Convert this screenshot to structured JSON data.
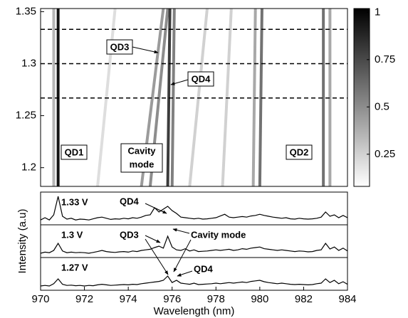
{
  "chart_data": [
    {
      "type": "heatmap",
      "xlim": [
        970,
        984
      ],
      "ylim": [
        1.182,
        1.353
      ],
      "yticks": [
        1.2,
        1.25,
        1.3,
        1.35
      ],
      "clim": [
        0.08,
        1.02
      ],
      "cticks": [
        0.25,
        0.5,
        0.75,
        1
      ],
      "colormap": [
        "#ffffff",
        "#000000"
      ],
      "hlines": [
        1.267,
        1.3,
        1.333
      ],
      "features": [
        {
          "x": [
            970.8,
            970.8
          ],
          "intensity": 0.95
        },
        {
          "x": [
            970.6,
            970.6
          ],
          "intensity": 0.35
        },
        {
          "x": [
            972.6,
            973.4
          ],
          "intensity": 0.2
        },
        {
          "x": [
            974.6,
            975.6
          ],
          "intensity": 0.45
        },
        {
          "x": [
            975.0,
            975.8
          ],
          "intensity": 0.5
        },
        {
          "x": [
            975.8,
            975.9
          ],
          "intensity": 0.8
        },
        {
          "x": [
            976.0,
            976.1
          ],
          "intensity": 0.55
        },
        {
          "x": [
            976.8,
            977.6
          ],
          "intensity": 0.25
        },
        {
          "x": [
            978.3,
            978.7
          ],
          "intensity": 0.25
        },
        {
          "x": [
            979.7,
            979.8
          ],
          "intensity": 0.4
        },
        {
          "x": [
            980.0,
            980.1
          ],
          "intensity": 0.6
        },
        {
          "x": [
            982.9,
            982.9
          ],
          "intensity": 0.6
        },
        {
          "x": [
            983.2,
            983.2
          ],
          "intensity": 0.4
        }
      ],
      "annotations": [
        "QD1",
        [
          "Cavity",
          "mode"
        ],
        "QD2",
        "QD3",
        "QD4"
      ]
    },
    {
      "type": "line",
      "xlabel": "Wavelength (nm)",
      "ylabel": "Intensity (a.u)",
      "xlim": [
        970,
        984
      ],
      "xticks": [
        970,
        972,
        974,
        976,
        978,
        980,
        982,
        984
      ],
      "ylim": [
        0,
        1
      ],
      "x": [
        970.0,
        970.2,
        970.4,
        970.6,
        970.8,
        971.0,
        971.2,
        971.4,
        971.6,
        971.8,
        972.0,
        972.2,
        972.4,
        972.6,
        972.8,
        973.0,
        973.2,
        973.4,
        973.6,
        973.8,
        974.0,
        974.2,
        974.4,
        974.6,
        974.8,
        975.0,
        975.2,
        975.4,
        975.6,
        975.8,
        976.0,
        976.2,
        976.4,
        976.6,
        976.8,
        977.0,
        977.2,
        977.4,
        977.6,
        977.8,
        978.0,
        978.2,
        978.4,
        978.6,
        978.8,
        979.0,
        979.2,
        979.4,
        979.6,
        979.8,
        980.0,
        980.2,
        980.4,
        980.6,
        980.8,
        981.0,
        981.2,
        981.4,
        981.6,
        981.8,
        982.0,
        982.2,
        982.4,
        982.6,
        982.8,
        983.0,
        983.2,
        983.4,
        983.6,
        983.8,
        984.0
      ],
      "series": [
        {
          "name": "1.33 V",
          "color": "#000000",
          "values": [
            0.12,
            0.2,
            0.12,
            0.3,
            0.95,
            0.25,
            0.15,
            0.18,
            0.12,
            0.15,
            0.14,
            0.12,
            0.16,
            0.2,
            0.22,
            0.18,
            0.14,
            0.16,
            0.15,
            0.18,
            0.16,
            0.2,
            0.18,
            0.22,
            0.28,
            0.3,
            0.55,
            0.4,
            0.5,
            0.6,
            0.45,
            0.35,
            0.22,
            0.2,
            0.18,
            0.16,
            0.18,
            0.15,
            0.16,
            0.18,
            0.2,
            0.26,
            0.32,
            0.22,
            0.2,
            0.22,
            0.24,
            0.22,
            0.26,
            0.28,
            0.32,
            0.28,
            0.25,
            0.22,
            0.2,
            0.18,
            0.2,
            0.16,
            0.15,
            0.18,
            0.16,
            0.15,
            0.16,
            0.18,
            0.22,
            0.4,
            0.25,
            0.3,
            0.2,
            0.28,
            0.2
          ]
        },
        {
          "name": "1.3 V",
          "color": "#000000",
          "values": [
            0.1,
            0.14,
            0.12,
            0.2,
            0.45,
            0.18,
            0.12,
            0.14,
            0.12,
            0.13,
            0.12,
            0.1,
            0.13,
            0.16,
            0.2,
            0.16,
            0.14,
            0.13,
            0.15,
            0.16,
            0.14,
            0.18,
            0.16,
            0.2,
            0.22,
            0.24,
            0.3,
            0.35,
            0.28,
            0.7,
            0.32,
            0.22,
            0.2,
            0.26,
            0.18,
            0.22,
            0.16,
            0.17,
            0.18,
            0.2,
            0.22,
            0.2,
            0.22,
            0.24,
            0.2,
            0.22,
            0.26,
            0.24,
            0.28,
            0.3,
            0.32,
            0.26,
            0.24,
            0.22,
            0.2,
            0.22,
            0.2,
            0.18,
            0.16,
            0.18,
            0.17,
            0.15,
            0.16,
            0.2,
            0.22,
            0.45,
            0.25,
            0.32,
            0.2,
            0.28,
            0.18
          ]
        },
        {
          "name": "1.27 V",
          "color": "#000000",
          "values": [
            0.1,
            0.12,
            0.1,
            0.18,
            0.35,
            0.16,
            0.12,
            0.13,
            0.11,
            0.12,
            0.1,
            0.12,
            0.11,
            0.14,
            0.16,
            0.14,
            0.12,
            0.13,
            0.14,
            0.15,
            0.14,
            0.16,
            0.15,
            0.18,
            0.2,
            0.22,
            0.24,
            0.26,
            0.3,
            0.45,
            0.22,
            0.3,
            0.2,
            0.18,
            0.16,
            0.2,
            0.15,
            0.16,
            0.17,
            0.18,
            0.2,
            0.18,
            0.2,
            0.22,
            0.2,
            0.22,
            0.24,
            0.22,
            0.26,
            0.28,
            0.3,
            0.25,
            0.22,
            0.2,
            0.18,
            0.2,
            0.18,
            0.16,
            0.15,
            0.16,
            0.15,
            0.14,
            0.15,
            0.18,
            0.2,
            0.35,
            0.22,
            0.3,
            0.18,
            0.25,
            0.16
          ]
        }
      ],
      "annotations": [
        "QD4",
        "QD3",
        "Cavity mode",
        "QD4"
      ]
    }
  ]
}
